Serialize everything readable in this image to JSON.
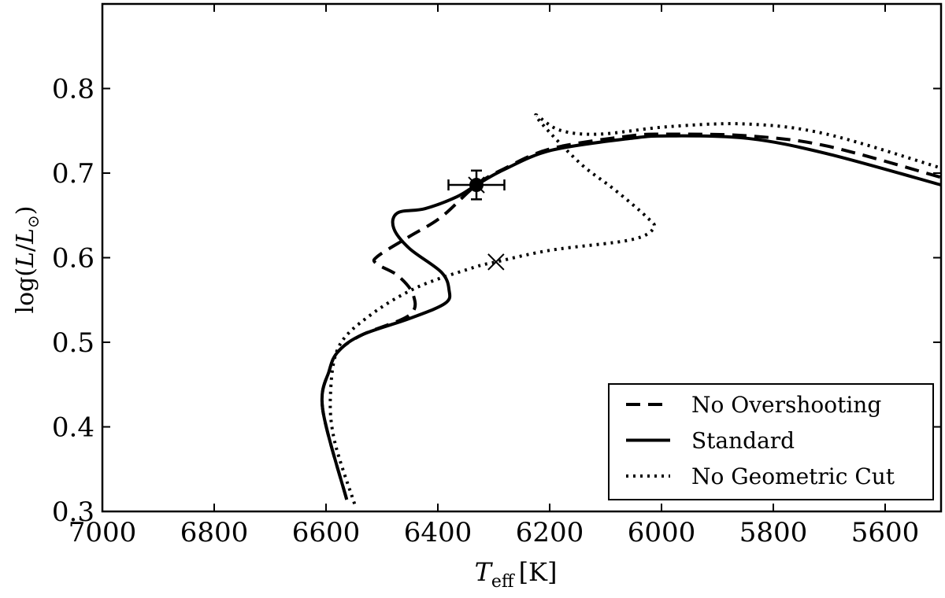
{
  "chart_data": {
    "type": "line",
    "xlabel": {
      "symbol": "T",
      "subscript": "eff",
      "unit": "[K]"
    },
    "ylabel": {
      "prefix": "log(",
      "symbol": "L",
      "slash": "/",
      "sun": "L",
      "sunsub": "⊙",
      "suffix": ")"
    },
    "xlim": [
      7000,
      5500
    ],
    "xticks": [
      7000,
      6800,
      6600,
      6400,
      6200,
      6000,
      5800,
      5600
    ],
    "ylim": [
      0.3,
      0.9
    ],
    "yticks": [
      0.3,
      0.4,
      0.5,
      0.6,
      0.7,
      0.8
    ],
    "legend": "lower right",
    "series": [
      {
        "name": "No Overshooting",
        "color": "#000000",
        "linestyle": "dashed",
        "x": [
          6563,
          6606,
          6594,
          6577,
          6535,
          6451,
          6444,
          6472,
          6510,
          6507,
          6451,
          6394,
          6331,
          6282,
          6197,
          6056,
          5986,
          5845,
          5704,
          5500
        ],
        "values": [
          0.314,
          0.421,
          0.467,
          0.49,
          0.509,
          0.532,
          0.556,
          0.579,
          0.593,
          0.602,
          0.625,
          0.648,
          0.686,
          0.705,
          0.729,
          0.744,
          0.746,
          0.744,
          0.732,
          0.695
        ]
      },
      {
        "name": "Standard",
        "color": "#000000",
        "linestyle": "solid",
        "x": [
          6563,
          6606,
          6594,
          6577,
          6535,
          6451,
          6387,
          6380,
          6394,
          6451,
          6479,
          6472,
          6423,
          6366,
          6331,
          6282,
          6197,
          6056,
          5986,
          5845,
          5704,
          5500
        ],
        "values": [
          0.314,
          0.421,
          0.467,
          0.49,
          0.509,
          0.528,
          0.546,
          0.562,
          0.583,
          0.611,
          0.635,
          0.653,
          0.658,
          0.672,
          0.686,
          0.704,
          0.727,
          0.741,
          0.744,
          0.741,
          0.723,
          0.686
        ]
      },
      {
        "name": "No Geometric Cut",
        "color": "#000000",
        "linestyle": "dotted",
        "x": [
          6549,
          6585,
          6592,
          6577,
          6521,
          6437,
          6338,
          6296,
          6197,
          6056,
          6014,
          6028,
          6085,
          6141,
          6197,
          6225,
          6183,
          6113,
          5986,
          5845,
          5704,
          5500
        ],
        "values": [
          0.309,
          0.384,
          0.439,
          0.495,
          0.532,
          0.565,
          0.588,
          0.595,
          0.609,
          0.621,
          0.635,
          0.649,
          0.681,
          0.709,
          0.746,
          0.769,
          0.751,
          0.746,
          0.755,
          0.758,
          0.746,
          0.706
        ]
      }
    ],
    "markers": [
      {
        "x": 6331,
        "y": 0.686,
        "xerr": 50,
        "yerr": 0.017,
        "symbol": "o"
      },
      {
        "x": 6331,
        "y": 0.686,
        "symbol": "x"
      },
      {
        "x": 6296,
        "y": 0.595,
        "symbol": "x"
      }
    ]
  }
}
